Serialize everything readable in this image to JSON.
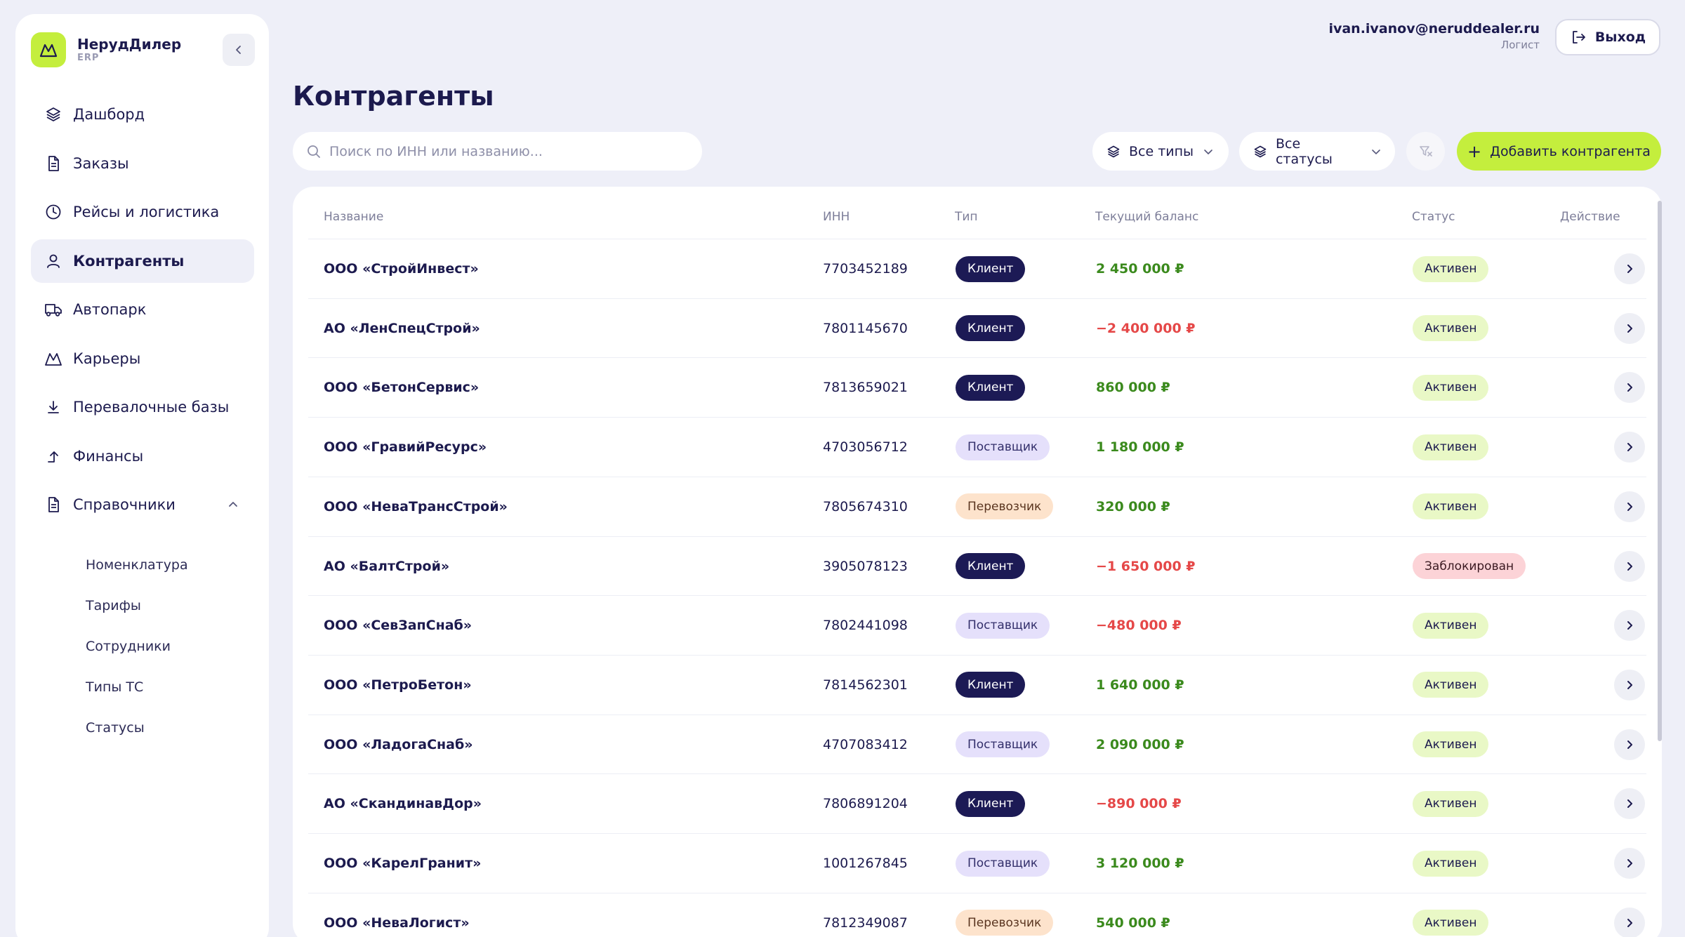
{
  "brand": {
    "name": "НерудДилер",
    "sub": "ERP",
    "accent": "#c4ee3d"
  },
  "nav": [
    {
      "label": "Дашборд",
      "icon": "layers-icon",
      "active": false
    },
    {
      "label": "Заказы",
      "icon": "document-icon",
      "active": false
    },
    {
      "label": "Рейсы и логистика",
      "icon": "clock-icon",
      "active": false
    },
    {
      "label": "Контрагенты",
      "icon": "user-icon",
      "active": true
    },
    {
      "label": "Автопарк",
      "icon": "truck-icon",
      "active": false
    },
    {
      "label": "Карьеры",
      "icon": "mountain-icon",
      "active": false
    },
    {
      "label": "Перевалочные базы",
      "icon": "download-icon",
      "active": false
    },
    {
      "label": "Финансы",
      "icon": "arrow-up-icon",
      "active": false
    },
    {
      "label": "Справочники",
      "icon": "document-icon",
      "active": false,
      "expanded": true
    }
  ],
  "subnav": [
    "Номенклатура",
    "Тарифы",
    "Сотрудники",
    "Типы ТС",
    "Статусы"
  ],
  "user": {
    "email": "ivan.ivanov@neruddealer.ru",
    "role": "Логист",
    "logout": "Выход"
  },
  "page": {
    "title": "Контрагенты",
    "search_placeholder": "Поиск по ИНН или названию...",
    "filter_types": "Все типы",
    "filter_statuses": "Все статусы",
    "add_button": "Добавить контрагента"
  },
  "table": {
    "headers": {
      "name": "Название",
      "inn": "ИНН",
      "type": "Тип",
      "balance": "Текущий баланс",
      "status": "Статус",
      "action": "Действие"
    },
    "rows": [
      {
        "name": "ООО «СтройИнвест»",
        "inn": "7703452189",
        "type": "Клиент",
        "type_kind": "client",
        "balance": "2 450 000 ₽",
        "balance_sign": "pos",
        "status": "Активен",
        "status_kind": "active"
      },
      {
        "name": "АО «ЛенСпецСтрой»",
        "inn": "7801145670",
        "type": "Клиент",
        "type_kind": "client",
        "balance": "−2 400 000 ₽",
        "balance_sign": "neg",
        "status": "Активен",
        "status_kind": "active"
      },
      {
        "name": "ООО «БетонСервис»",
        "inn": "7813659021",
        "type": "Клиент",
        "type_kind": "client",
        "balance": "860 000 ₽",
        "balance_sign": "pos",
        "status": "Активен",
        "status_kind": "active"
      },
      {
        "name": "ООО «ГравийРесурс»",
        "inn": "4703056712",
        "type": "Поставщик",
        "type_kind": "supplier",
        "balance": "1 180 000 ₽",
        "balance_sign": "pos",
        "status": "Активен",
        "status_kind": "active"
      },
      {
        "name": "ООО «НеваТрансСтрой»",
        "inn": "7805674310",
        "type": "Перевозчик",
        "type_kind": "carrier",
        "balance": "320 000 ₽",
        "balance_sign": "pos",
        "status": "Активен",
        "status_kind": "active"
      },
      {
        "name": "АО «БалтСтрой»",
        "inn": "3905078123",
        "type": "Клиент",
        "type_kind": "client",
        "balance": "−1 650 000 ₽",
        "balance_sign": "neg",
        "status": "Заблокирован",
        "status_kind": "blocked"
      },
      {
        "name": "ООО «СевЗапСнаб»",
        "inn": "7802441098",
        "type": "Поставщик",
        "type_kind": "supplier",
        "balance": "−480 000 ₽",
        "balance_sign": "neg",
        "status": "Активен",
        "status_kind": "active"
      },
      {
        "name": "ООО «ПетроБетон»",
        "inn": "7814562301",
        "type": "Клиент",
        "type_kind": "client",
        "balance": "1 640 000 ₽",
        "balance_sign": "pos",
        "status": "Активен",
        "status_kind": "active"
      },
      {
        "name": "ООО «ЛадогаСнаб»",
        "inn": "4707083412",
        "type": "Поставщик",
        "type_kind": "supplier",
        "balance": "2 090 000 ₽",
        "balance_sign": "pos",
        "status": "Активен",
        "status_kind": "active"
      },
      {
        "name": "АО «СкандинавДор»",
        "inn": "7806891204",
        "type": "Клиент",
        "type_kind": "client",
        "balance": "−890 000 ₽",
        "balance_sign": "neg",
        "status": "Активен",
        "status_kind": "active"
      },
      {
        "name": "ООО «КарелГранит»",
        "inn": "1001267845",
        "type": "Поставщик",
        "type_kind": "supplier",
        "balance": "3 120 000 ₽",
        "balance_sign": "pos",
        "status": "Активен",
        "status_kind": "active"
      },
      {
        "name": "ООО «НеваЛогист»",
        "inn": "7812349087",
        "type": "Перевозчик",
        "type_kind": "carrier",
        "balance": "540 000 ₽",
        "balance_sign": "pos",
        "status": "Активен",
        "status_kind": "active"
      }
    ]
  }
}
